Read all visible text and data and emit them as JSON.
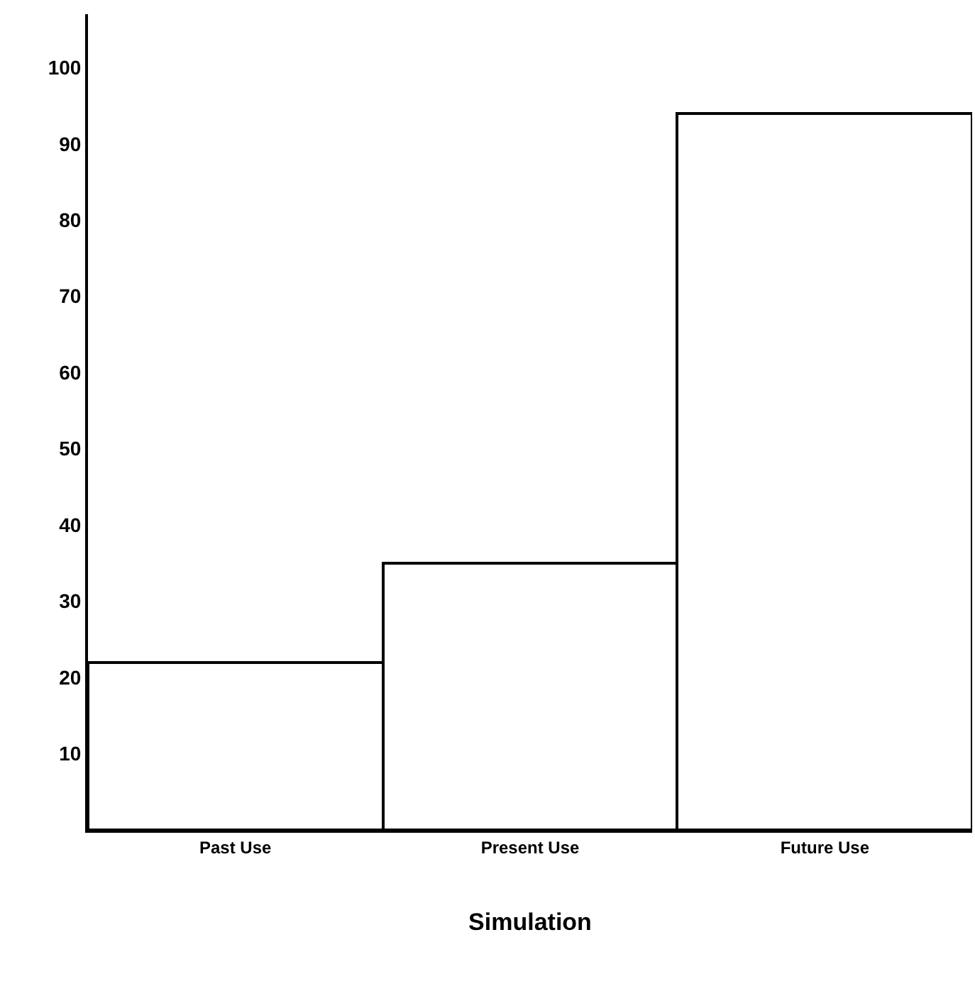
{
  "chart_data": {
    "type": "bar",
    "xlabel": "Simulation",
    "categories": [
      "Past Use",
      "Present Use",
      "Future Use"
    ],
    "values": [
      22,
      35,
      94
    ],
    "color": "#ffffff",
    "ylim": [
      0,
      107
    ],
    "yticks": [
      10,
      20,
      30,
      40,
      50,
      60,
      70,
      80,
      90,
      100
    ],
    "grid": false
  }
}
